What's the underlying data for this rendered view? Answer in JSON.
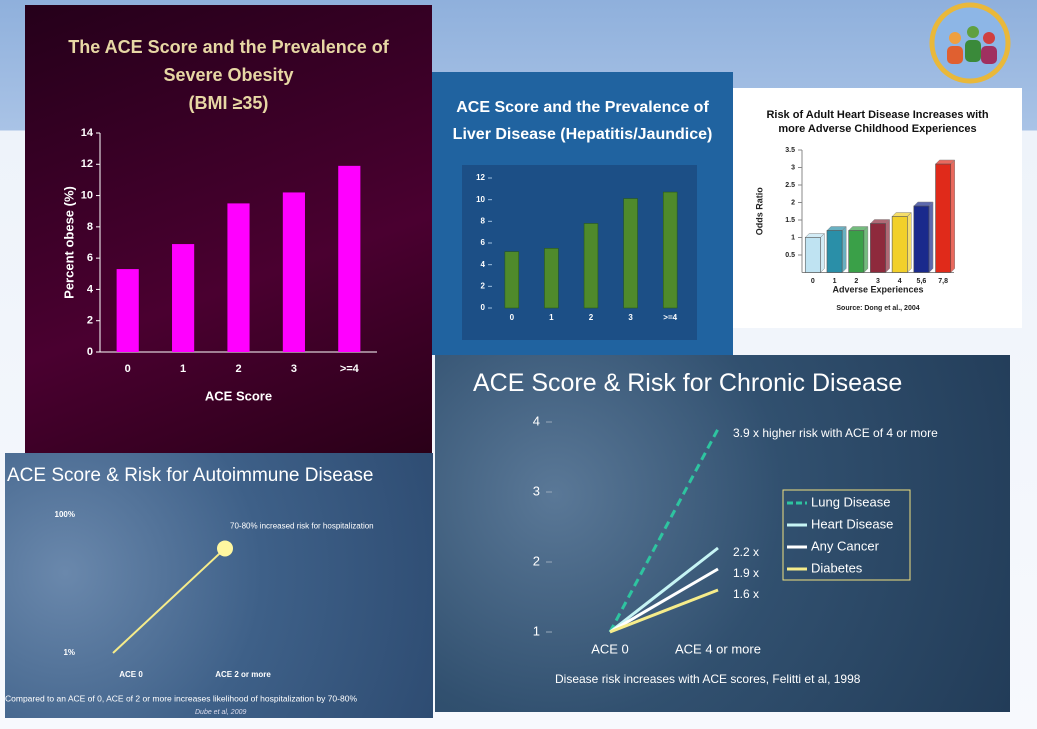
{
  "chart_data": [
    {
      "type": "bar",
      "title": "The ACE Score and the Prevalence of\nSevere Obesity\n(BMI ≥35)",
      "categories": [
        "0",
        "1",
        "2",
        "3",
        ">=4"
      ],
      "values": [
        5.3,
        6.9,
        9.5,
        10.2,
        11.9
      ],
      "color": "#ff00ff",
      "ylim": [
        0,
        14
      ],
      "yticks": [
        0,
        2,
        4,
        6,
        8,
        10,
        12,
        14
      ],
      "ylabel": "Percent obese (%)",
      "xlabel": "ACE Score"
    },
    {
      "type": "bar",
      "title": "ACE Score and the Prevalence of\nLiver Disease (Hepatitis/Jaundice)",
      "categories": [
        "0",
        "1",
        "2",
        "3",
        ">=4"
      ],
      "values": [
        5.2,
        5.5,
        7.8,
        10.1,
        10.7
      ],
      "color": "#4f8a2b",
      "ylim": [
        0,
        12
      ],
      "yticks": [
        0,
        2,
        4,
        6,
        8,
        10,
        12
      ]
    },
    {
      "type": "bar",
      "title": "Risk of Adult Heart Disease Increases with\nmore Adverse Childhood Experiences",
      "categories": [
        "0",
        "1",
        "2",
        "3",
        "4",
        "5,6",
        "7,8"
      ],
      "values": [
        1.0,
        1.2,
        1.2,
        1.4,
        1.6,
        1.9,
        3.1
      ],
      "colors": [
        "#bfe3f2",
        "#2a8fa8",
        "#3aa048",
        "#8e2a3c",
        "#f2d02a",
        "#1a2a8c",
        "#e02a1a"
      ],
      "ylim": [
        0,
        3.5
      ],
      "yticks": [
        0.5,
        1,
        1.5,
        2,
        2.5,
        3,
        3.5
      ],
      "ylabel": "Odds Ratio",
      "xlabel": "Adverse Experiences",
      "source": "Source: Dong et al., 2004"
    },
    {
      "type": "line",
      "title": "ACE Score & Risk for Chronic Disease",
      "categories": [
        "ACE 0",
        "ACE 4 or more"
      ],
      "series": [
        {
          "name": "Lung Disease",
          "color": "#2ec4a0",
          "dashed": true,
          "values": [
            1,
            3.9
          ],
          "value_labels": [
            null,
            "3.9 x higher risk with ACE of 4 or more"
          ]
        },
        {
          "name": "Heart Disease",
          "color": "#c6f4f4",
          "values": [
            1,
            2.2
          ],
          "value_labels": [
            null,
            "2.2 x"
          ]
        },
        {
          "name": "Any Cancer",
          "color": "#ffffff",
          "values": [
            1,
            1.9
          ],
          "value_labels": [
            null,
            "1.9 x"
          ]
        },
        {
          "name": "Diabetes",
          "color": "#f6ec8a",
          "values": [
            1,
            1.6
          ],
          "value_labels": [
            null,
            "1.6 x"
          ]
        }
      ],
      "ylim": [
        1,
        4
      ],
      "yticks": [
        1,
        2,
        3,
        4
      ],
      "caption": "Disease risk increases with ACE scores, Felitti et al, 1998"
    },
    {
      "type": "point-line",
      "title": "ACE Score & Risk for Autoimmune Disease",
      "categories": [
        "ACE 0",
        "ACE 2 or more"
      ],
      "values": [
        1,
        76
      ],
      "value_labels": [
        null,
        "70-80% increased risk for hospitalization"
      ],
      "color": "#f6ec8a",
      "ylim": [
        1,
        100
      ],
      "yticks": [
        {
          "value": 1,
          "label": "1%"
        },
        {
          "value": 100,
          "label": "100%"
        }
      ],
      "caption": "Compared to an ACE of 0, ACE of 2 or more increases likelihood of hospitalization by 70-80%",
      "source": "Dube et al, 2009"
    }
  ]
}
